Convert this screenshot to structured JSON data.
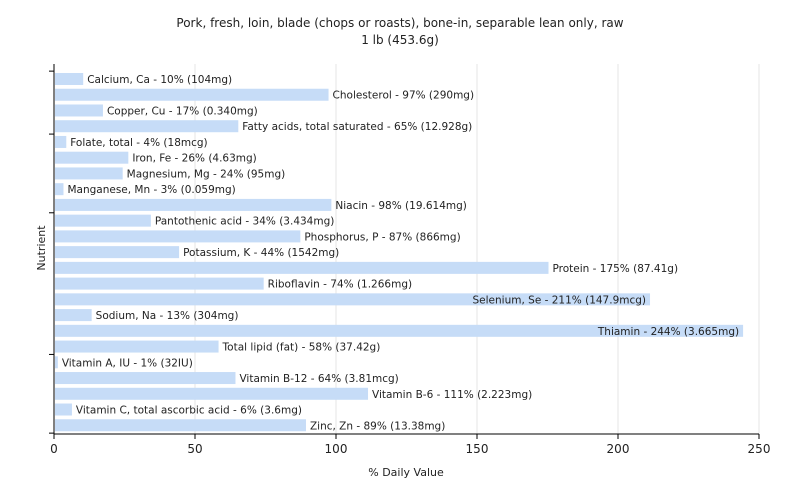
{
  "chart_data": {
    "type": "bar",
    "orientation": "horizontal",
    "title": "Pork, fresh, loin, blade (chops or roasts), bone-in, separable lean only, raw",
    "subtitle": "1 lb (453.6g)",
    "xlabel": "% Daily Value",
    "ylabel": "Nutrient",
    "xlim": [
      0,
      250
    ],
    "xticks": [
      0,
      50,
      100,
      150,
      200,
      250
    ],
    "grid": true,
    "bar_color": "#c6dcf7",
    "categories": [
      "Calcium, Ca",
      "Cholesterol",
      "Copper, Cu",
      "Fatty acids, total saturated",
      "Folate, total",
      "Iron, Fe",
      "Magnesium, Mg",
      "Manganese, Mn",
      "Niacin",
      "Pantothenic acid",
      "Phosphorus, P",
      "Potassium, K",
      "Protein",
      "Riboflavin",
      "Selenium, Se",
      "Sodium, Na",
      "Thiamin",
      "Total lipid (fat)",
      "Vitamin A, IU",
      "Vitamin B-12",
      "Vitamin B-6",
      "Vitamin C, total ascorbic acid",
      "Zinc, Zn"
    ],
    "values": [
      10,
      97,
      17,
      65,
      4,
      26,
      24,
      3,
      98,
      34,
      87,
      44,
      175,
      74,
      211,
      13,
      244,
      58,
      1,
      64,
      111,
      6,
      89
    ],
    "labels": [
      "Calcium, Ca - 10% (104mg)",
      "Cholesterol - 97% (290mg)",
      "Copper, Cu - 17% (0.340mg)",
      "Fatty acids, total saturated - 65% (12.928g)",
      "Folate, total - 4% (18mcg)",
      "Iron, Fe - 26% (4.63mg)",
      "Magnesium, Mg - 24% (95mg)",
      "Manganese, Mn - 3% (0.059mg)",
      "Niacin - 98% (19.614mg)",
      "Pantothenic acid - 34% (3.434mg)",
      "Phosphorus, P - 87% (866mg)",
      "Potassium, K - 44% (1542mg)",
      "Protein - 175% (87.41g)",
      "Riboflavin - 74% (1.266mg)",
      "Selenium, Se - 211% (147.9mcg)",
      "Sodium, Na - 13% (304mg)",
      "Thiamin - 244% (3.665mg)",
      "Total lipid (fat) - 58% (37.42g)",
      "Vitamin A, IU - 1% (32IU)",
      "Vitamin B-12 - 64% (3.81mcg)",
      "Vitamin B-6 - 111% (2.223mg)",
      "Vitamin C, total ascorbic acid - 6% (3.6mg)",
      "Zinc, Zn - 89% (13.38mg)"
    ]
  }
}
